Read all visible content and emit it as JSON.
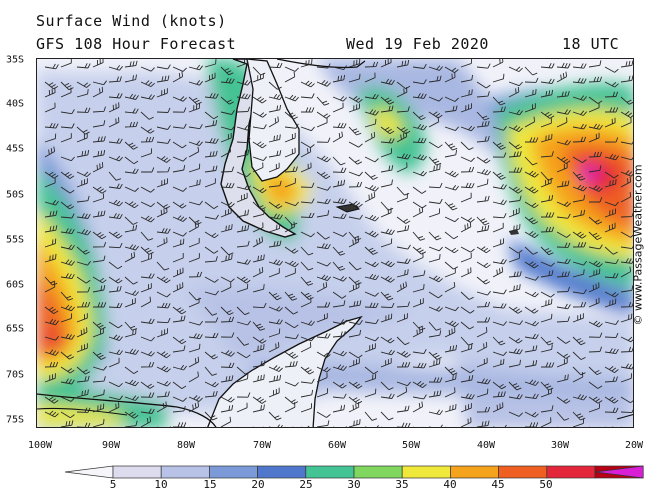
{
  "title": {
    "line1": "Surface Wind (knots)",
    "line2": "GFS 108 Hour Forecast",
    "date": "Wed 19 Feb 2020",
    "time": "18 UTC"
  },
  "credit": "© www.PassageWeather.com",
  "map": {
    "region": "South Atlantic / Drake Passage / Antarctic Peninsula",
    "lat_labels": [
      "35S",
      "40S",
      "45S",
      "50S",
      "55S",
      "60S",
      "65S",
      "70S",
      "75S"
    ],
    "lon_labels": [
      "100W",
      "90W",
      "80W",
      "70W",
      "60W",
      "50W",
      "40W",
      "30W",
      "20W"
    ],
    "colors": {
      "background": "#f4f4fa",
      "land_outline": "#111111",
      "wind_barbs": "#2a2a2a"
    }
  },
  "legend": {
    "labels": [
      "5",
      "10",
      "15",
      "20",
      "25",
      "30",
      "35",
      "40",
      "45",
      "50"
    ],
    "colors": [
      "#f6f6fa",
      "#dcdcee",
      "#b8c2e6",
      "#7d9ad8",
      "#4f78cc",
      "#44c394",
      "#7fd760",
      "#f0e83a",
      "#f5a21d",
      "#ee5f21",
      "#e3263a",
      "#b80014",
      "#d91fd6"
    ]
  }
}
